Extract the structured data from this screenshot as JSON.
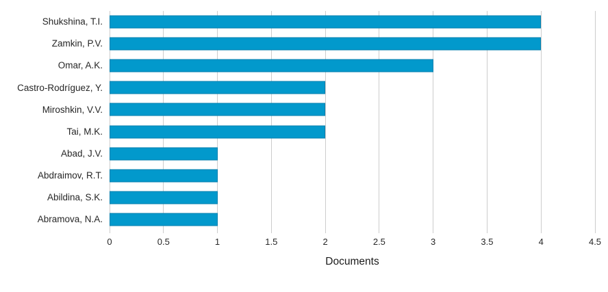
{
  "chart_data": {
    "type": "bar",
    "orientation": "horizontal",
    "title": "",
    "xlabel": "Documents",
    "ylabel": "",
    "categories": [
      "Shukshina, T.I.",
      "Zamkin, P.V.",
      "Omar, A.K.",
      "Castro-Rodríguez, Y.",
      "Miroshkin, V.V.",
      "Tai, M.K.",
      "Abad, J.V.",
      "Abdraimov, R.T.",
      "Abildina, S.K.",
      "Abramova, N.A."
    ],
    "values": [
      4,
      4,
      3,
      2,
      2,
      2,
      1,
      1,
      1,
      1
    ],
    "xlim": [
      0,
      4.5
    ],
    "xticks": [
      0,
      0.5,
      1,
      1.5,
      2,
      2.5,
      3,
      3.5,
      4,
      4.5
    ],
    "xtick_labels": [
      "0",
      "0.5",
      "1",
      "1.5",
      "2",
      "2.5",
      "3",
      "3.5",
      "4",
      "4.5"
    ],
    "grid": "vertical-gridlines-on",
    "legend": "none",
    "colors": {
      "bar": "#0299CC",
      "bar_border": "#057FAE",
      "gridline": "#CCCCCC",
      "text": "#262626",
      "background": "#FFFFFF"
    }
  }
}
